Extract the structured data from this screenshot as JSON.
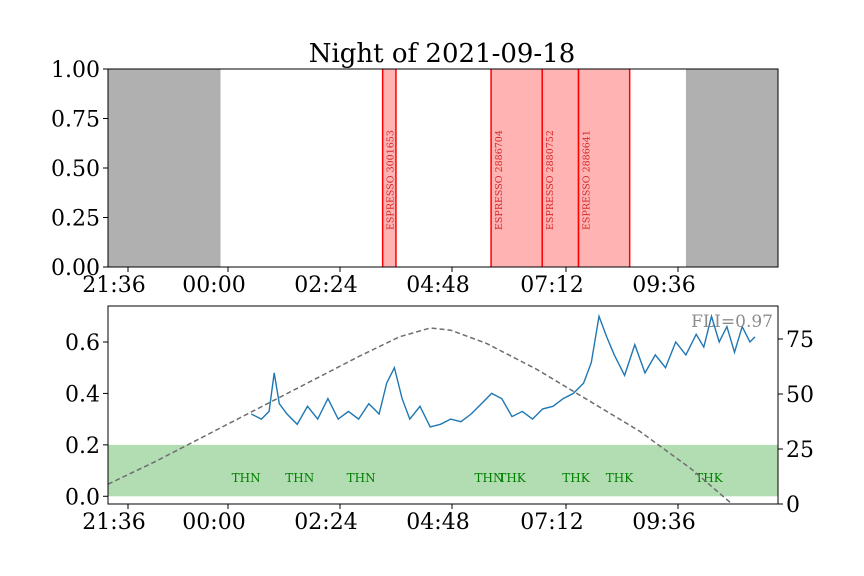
{
  "chart_data": [
    {
      "type": "timeline",
      "title": "Night of 2021-09-18",
      "ylim": [
        0,
        1
      ],
      "y_ticks": [
        "0.00",
        "0.25",
        "0.50",
        "0.75",
        "1.00"
      ],
      "x_ticks": [
        "21:36",
        "00:00",
        "02:24",
        "04:48",
        "07:12",
        "09:36"
      ],
      "x_range_hours": [
        21.1,
        34.2
      ],
      "daytime_shading": [
        {
          "start_h": 21.1,
          "end_h": 23.3
        },
        {
          "start_h": 32.4,
          "end_h": 34.2
        }
      ],
      "daytime_color": "#b0b0b0",
      "observations": [
        {
          "label": "ESPRESSO 3001653",
          "start_h": 26.47,
          "end_h": 26.73
        },
        {
          "label": "ESPRESSO 2886704",
          "start_h": 28.59,
          "end_h": 29.59
        },
        {
          "label": "ESPRESSO 2880752",
          "start_h": 29.59,
          "end_h": 30.3
        },
        {
          "label": "ESPRESSO 2886641",
          "start_h": 30.3,
          "end_h": 31.3
        }
      ],
      "obs_fill": "#ffb3b3",
      "obs_edge": "#ff0000"
    },
    {
      "type": "line",
      "annotation": "FLI=0.97",
      "x_ticks": [
        "21:36",
        "00:00",
        "02:24",
        "04:48",
        "07:12",
        "09:36"
      ],
      "x_range_hours": [
        21.1,
        34.2
      ],
      "y_left_ticks": [
        "0.0",
        "0.2",
        "0.4",
        "0.6"
      ],
      "y_left_range": [
        -0.03,
        0.74
      ],
      "y_right_ticks": [
        "0",
        "25",
        "50",
        "75"
      ],
      "y_right_range": [
        0,
        90
      ],
      "green_band": [
        0,
        0.2
      ],
      "green_color": "#b2dcb2",
      "condition_labels": [
        {
          "label": "THN",
          "time_h": 23.8
        },
        {
          "label": "THN",
          "time_h": 24.85
        },
        {
          "label": "THN",
          "time_h": 26.05
        },
        {
          "label": "THN",
          "time_h": 28.55
        },
        {
          "label": "THK",
          "time_h": 29.0
        },
        {
          "label": "THK",
          "time_h": 30.25
        },
        {
          "label": "THK",
          "time_h": 31.1
        },
        {
          "label": "THK",
          "time_h": 32.85
        }
      ],
      "elevation_curve": [
        {
          "t": 21.1,
          "v": 9
        },
        {
          "t": 22.0,
          "v": 19
        },
        {
          "t": 23.0,
          "v": 31
        },
        {
          "t": 24.0,
          "v": 43
        },
        {
          "t": 25.0,
          "v": 55
        },
        {
          "t": 26.0,
          "v": 67
        },
        {
          "t": 26.8,
          "v": 76
        },
        {
          "t": 27.4,
          "v": 80
        },
        {
          "t": 27.8,
          "v": 79
        },
        {
          "t": 28.5,
          "v": 73
        },
        {
          "t": 29.5,
          "v": 61
        },
        {
          "t": 30.5,
          "v": 47
        },
        {
          "t": 31.5,
          "v": 33
        },
        {
          "t": 32.5,
          "v": 16
        },
        {
          "t": 33.3,
          "v": 0
        }
      ],
      "seeing_series": [
        {
          "t": 23.9,
          "v": 0.32
        },
        {
          "t": 24.1,
          "v": 0.3
        },
        {
          "t": 24.25,
          "v": 0.33
        },
        {
          "t": 24.35,
          "v": 0.48
        },
        {
          "t": 24.45,
          "v": 0.36
        },
        {
          "t": 24.6,
          "v": 0.32
        },
        {
          "t": 24.8,
          "v": 0.28
        },
        {
          "t": 25.0,
          "v": 0.35
        },
        {
          "t": 25.2,
          "v": 0.3
        },
        {
          "t": 25.4,
          "v": 0.38
        },
        {
          "t": 25.6,
          "v": 0.3
        },
        {
          "t": 25.8,
          "v": 0.33
        },
        {
          "t": 26.0,
          "v": 0.3
        },
        {
          "t": 26.2,
          "v": 0.36
        },
        {
          "t": 26.4,
          "v": 0.32
        },
        {
          "t": 26.55,
          "v": 0.44
        },
        {
          "t": 26.7,
          "v": 0.5
        },
        {
          "t": 26.85,
          "v": 0.38
        },
        {
          "t": 27.0,
          "v": 0.3
        },
        {
          "t": 27.2,
          "v": 0.35
        },
        {
          "t": 27.4,
          "v": 0.27
        },
        {
          "t": 27.6,
          "v": 0.28
        },
        {
          "t": 27.8,
          "v": 0.3
        },
        {
          "t": 28.0,
          "v": 0.29
        },
        {
          "t": 28.2,
          "v": 0.32
        },
        {
          "t": 28.4,
          "v": 0.36
        },
        {
          "t": 28.6,
          "v": 0.4
        },
        {
          "t": 28.8,
          "v": 0.38
        },
        {
          "t": 29.0,
          "v": 0.31
        },
        {
          "t": 29.2,
          "v": 0.33
        },
        {
          "t": 29.4,
          "v": 0.3
        },
        {
          "t": 29.6,
          "v": 0.34
        },
        {
          "t": 29.8,
          "v": 0.35
        },
        {
          "t": 30.0,
          "v": 0.38
        },
        {
          "t": 30.2,
          "v": 0.4
        },
        {
          "t": 30.4,
          "v": 0.44
        },
        {
          "t": 30.55,
          "v": 0.52
        },
        {
          "t": 30.7,
          "v": 0.7
        },
        {
          "t": 30.85,
          "v": 0.62
        },
        {
          "t": 31.0,
          "v": 0.55
        },
        {
          "t": 31.2,
          "v": 0.47
        },
        {
          "t": 31.4,
          "v": 0.59
        },
        {
          "t": 31.6,
          "v": 0.48
        },
        {
          "t": 31.8,
          "v": 0.55
        },
        {
          "t": 32.0,
          "v": 0.5
        },
        {
          "t": 32.2,
          "v": 0.6
        },
        {
          "t": 32.4,
          "v": 0.55
        },
        {
          "t": 32.6,
          "v": 0.63
        },
        {
          "t": 32.75,
          "v": 0.58
        },
        {
          "t": 32.9,
          "v": 0.7
        },
        {
          "t": 33.05,
          "v": 0.6
        },
        {
          "t": 33.2,
          "v": 0.66
        },
        {
          "t": 33.35,
          "v": 0.56
        },
        {
          "t": 33.5,
          "v": 0.66
        },
        {
          "t": 33.65,
          "v": 0.6
        },
        {
          "t": 33.75,
          "v": 0.62
        }
      ],
      "seeing_color": "#1f77b4",
      "elevation_color": "#6e6e6e"
    }
  ]
}
